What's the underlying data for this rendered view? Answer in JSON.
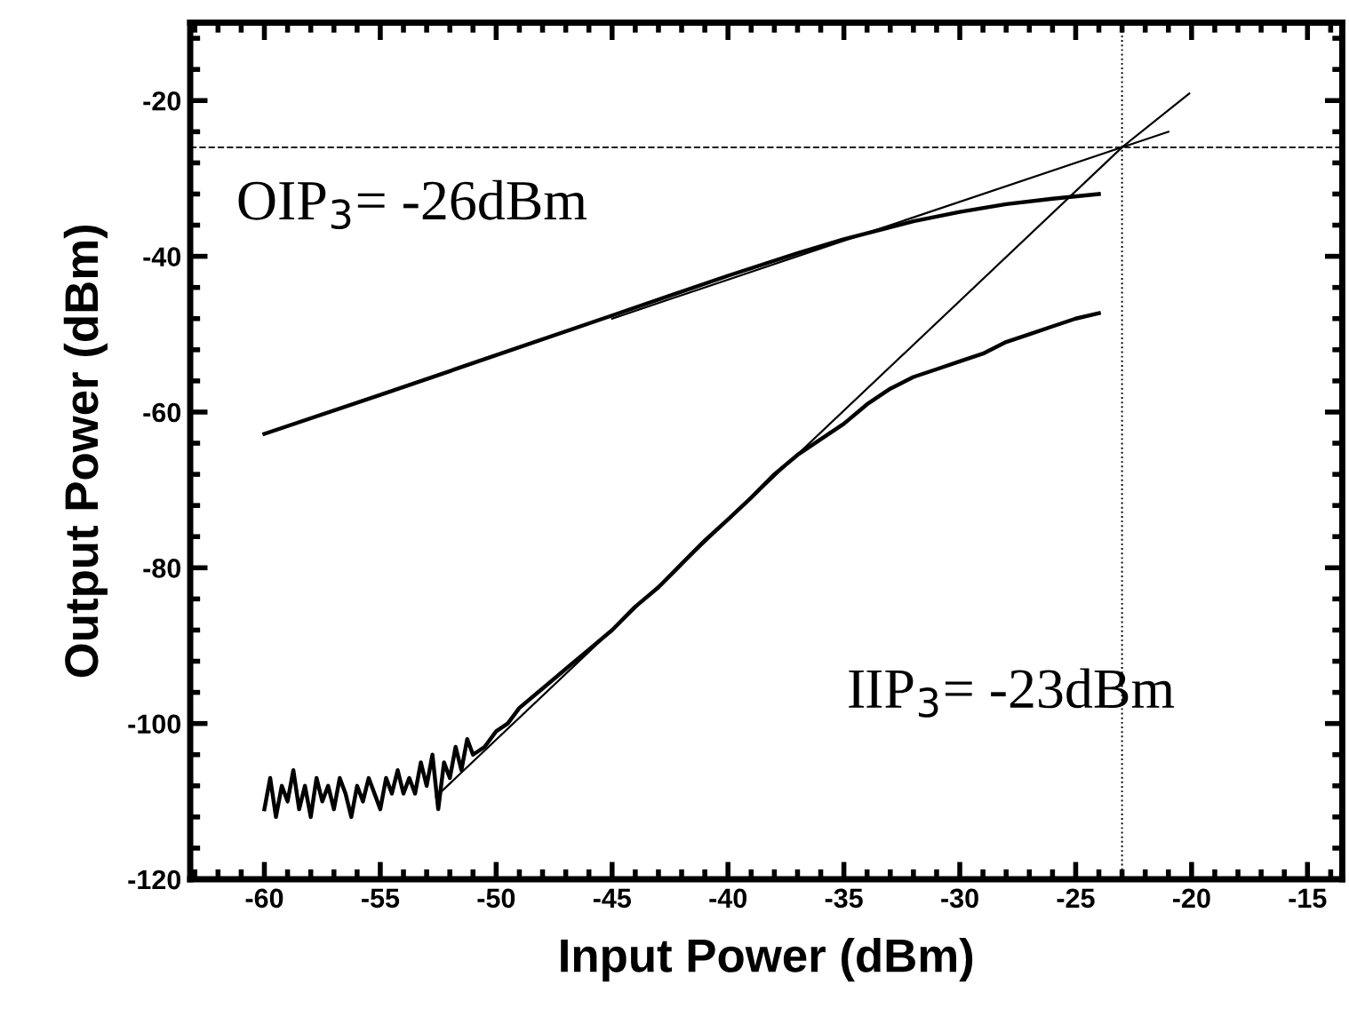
{
  "chart_data": {
    "type": "line",
    "xlabel": "Input Power (dBm)",
    "ylabel": "Output Power (dBm)",
    "xlim": [
      -63.2,
      -13.5
    ],
    "ylim": [
      -120,
      -10
    ],
    "xticks": [
      -60,
      -55,
      -50,
      -45,
      -40,
      -35,
      -30,
      -25,
      -20,
      -15
    ],
    "yticks": [
      -120,
      -100,
      -80,
      -60,
      -40,
      -20
    ],
    "grid": false,
    "legend": false,
    "marker": "none",
    "line_style": "solid",
    "series": [
      {
        "color": "#000000",
        "x": [
          -60,
          -55,
          -50,
          -45,
          -40,
          -37,
          -35,
          -32,
          -30,
          -28,
          -26,
          -24
        ],
        "values": [
          -62.8,
          -57.8,
          -52.7,
          -47.6,
          -42.5,
          -39.6,
          -37.8,
          -35.5,
          -34.3,
          -33.3,
          -32.6,
          -32.0
        ]
      },
      {
        "color": "#000000",
        "x": [
          -60,
          -59.75,
          -59.5,
          -59.25,
          -59,
          -58.75,
          -58.5,
          -58.25,
          -58,
          -57.75,
          -57.5,
          -57.25,
          -57,
          -56.75,
          -56.5,
          -56.25,
          -56,
          -55.75,
          -55.5,
          -55.25,
          -55,
          -54.75,
          -54.5,
          -54.25,
          -54,
          -53.75,
          -53.5,
          -53.25,
          -53,
          -52.75,
          -52.5,
          -52.25,
          -52,
          -51.75,
          -51.5,
          -51.25,
          -51,
          -50.5,
          -50,
          -49.5,
          -49,
          -48,
          -47,
          -46,
          -45,
          -44,
          -43,
          -42,
          -41,
          -40,
          -39,
          -38,
          -37,
          -36,
          -35,
          -34,
          -33,
          -32,
          -31,
          -30,
          -29,
          -28,
          -27,
          -26,
          -25,
          -24
        ],
        "values": [
          -111,
          -107,
          -112,
          -108,
          -110,
          -106,
          -111,
          -108,
          -112,
          -107,
          -110,
          -108,
          -111,
          -107,
          -109,
          -112,
          -108,
          -110,
          -107,
          -109,
          -111,
          -107,
          -109,
          -106,
          -109,
          -107,
          -109,
          -105,
          -108,
          -104,
          -111,
          -105,
          -107,
          -103,
          -106,
          -102,
          -104,
          -103,
          -101,
          -100,
          -98,
          -95.5,
          -93,
          -90.5,
          -88,
          -85,
          -82.5,
          -79.5,
          -76.5,
          -73.8,
          -71,
          -68,
          -65.5,
          -63.5,
          -61.5,
          -59,
          -57,
          -55.5,
          -54.5,
          -53.5,
          -52.5,
          -51,
          -50,
          -49,
          -48,
          -47.3
        ]
      },
      {
        "color": "#000000",
        "x": [
          -45,
          -21
        ],
        "values": [
          -48,
          -24
        ]
      },
      {
        "color": "#000000",
        "x": [
          -52.6,
          -23,
          -20.1
        ],
        "values": [
          -109.4,
          -26,
          -19.1
        ]
      }
    ],
    "ref_lines": [
      {
        "axis": "y",
        "value": -26,
        "line_style": "dashed",
        "color": "#000000"
      },
      {
        "axis": "x",
        "value": -23,
        "line_style": "dotted",
        "color": "#000000"
      }
    ],
    "annotations": [
      "OIP$_{3}$= -26dBm",
      "IIP$_{3}$= -23dBm"
    ]
  }
}
